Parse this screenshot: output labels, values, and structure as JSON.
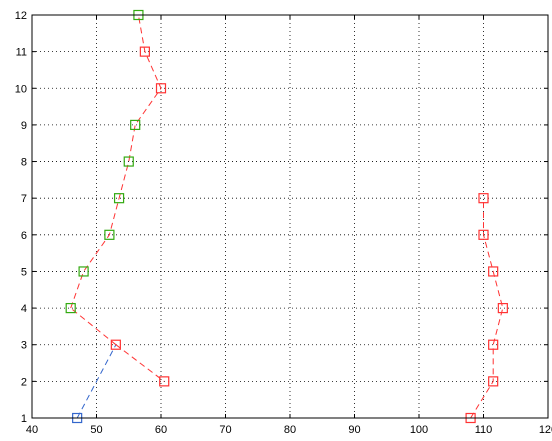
{
  "chart_data": {
    "type": "line",
    "title": "",
    "xlabel": "",
    "ylabel": "",
    "xlim": [
      40,
      120
    ],
    "ylim": [
      1,
      12
    ],
    "xticks": [
      40,
      50,
      60,
      70,
      80,
      90,
      100,
      110,
      120
    ],
    "yticks": [
      1,
      2,
      3,
      4,
      5,
      6,
      7,
      8,
      9,
      10,
      11,
      12
    ],
    "grid": true,
    "colors": {
      "red": "#ff3333",
      "green": "#33aa11",
      "blue": "#3366cc"
    },
    "series": [
      {
        "color": "blue",
        "line": true,
        "points": [
          [
            47.0,
            1
          ],
          [
            53.0,
            3
          ]
        ]
      },
      {
        "color": "red",
        "line": true,
        "points": [
          [
            53.0,
            3
          ],
          [
            60.5,
            2
          ]
        ]
      },
      {
        "color": "red",
        "line": true,
        "points": [
          [
            53.0,
            3
          ],
          [
            46.0,
            4
          ]
        ]
      },
      {
        "color": "red",
        "line": true,
        "points": [
          [
            46.0,
            4
          ],
          [
            48.0,
            5
          ],
          [
            52.0,
            6
          ],
          [
            53.5,
            7
          ],
          [
            55.0,
            8
          ],
          [
            56.0,
            9
          ],
          [
            60.0,
            10
          ],
          [
            57.5,
            11
          ],
          [
            56.5,
            12
          ]
        ]
      },
      {
        "color": "green",
        "line": false,
        "points": [
          [
            48.0,
            5
          ],
          [
            52.0,
            6
          ],
          [
            53.5,
            7
          ],
          [
            55.0,
            8
          ],
          [
            56.0,
            9
          ],
          [
            56.5,
            12
          ],
          [
            46.0,
            4
          ]
        ]
      },
      {
        "color": "red",
        "line": false,
        "points": [
          [
            53.0,
            3
          ],
          [
            60.5,
            2
          ],
          [
            60.0,
            10
          ],
          [
            57.5,
            11
          ]
        ]
      },
      {
        "color": "blue",
        "line": false,
        "points": [
          [
            47.0,
            1
          ]
        ]
      },
      {
        "color": "red",
        "line": true,
        "points": [
          [
            108.0,
            1
          ],
          [
            111.5,
            2
          ],
          [
            111.5,
            3
          ],
          [
            113.0,
            4
          ],
          [
            111.5,
            5
          ],
          [
            110.0,
            6
          ],
          [
            110.0,
            7
          ]
        ]
      },
      {
        "color": "red",
        "line": false,
        "points": [
          [
            108.0,
            1
          ],
          [
            111.5,
            2
          ],
          [
            111.5,
            3
          ],
          [
            113.0,
            4
          ],
          [
            111.5,
            5
          ],
          [
            110.0,
            6
          ],
          [
            110.0,
            7
          ]
        ]
      }
    ]
  }
}
